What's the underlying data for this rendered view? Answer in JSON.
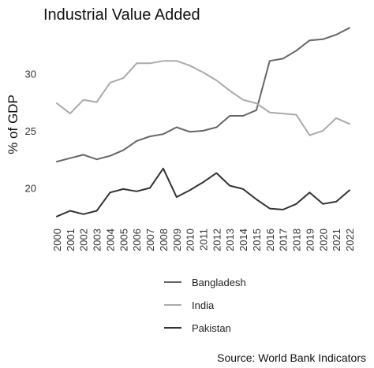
{
  "chart_data": {
    "type": "line",
    "title": "Industrial Value Added",
    "xlabel": "",
    "ylabel": "% of GDP",
    "caption": "Source: World Bank Indicators",
    "x": [
      "2000",
      "2001",
      "2002",
      "2003",
      "2004",
      "2005",
      "2006",
      "2007",
      "2008",
      "2009",
      "2010",
      "2011",
      "2012",
      "2013",
      "2014",
      "2015",
      "2016",
      "2017",
      "2018",
      "2019",
      "2020",
      "2021",
      "2022"
    ],
    "yticks": [
      20,
      25,
      30
    ],
    "ylim": [
      17.0,
      34.5
    ],
    "grid": false,
    "legend_position": "bottom",
    "series": [
      {
        "name": "Bangladesh",
        "color": "#666666",
        "values": [
          22.3,
          22.6,
          22.9,
          22.5,
          22.8,
          23.3,
          24.1,
          24.5,
          24.7,
          25.3,
          24.9,
          25.0,
          25.3,
          26.3,
          26.3,
          26.8,
          31.1,
          31.3,
          32.0,
          32.9,
          33.0,
          33.4,
          34.0
        ]
      },
      {
        "name": "India",
        "color": "#aaaaaa",
        "values": [
          27.4,
          26.5,
          27.7,
          27.5,
          29.2,
          29.6,
          30.9,
          30.9,
          31.1,
          31.1,
          30.7,
          30.1,
          29.4,
          28.5,
          27.7,
          27.4,
          26.6,
          26.5,
          26.4,
          24.6,
          25.0,
          26.1,
          25.6
        ]
      },
      {
        "name": "Pakistan",
        "color": "#333333",
        "values": [
          17.5,
          18.0,
          17.7,
          18.0,
          19.6,
          19.9,
          19.7,
          20.0,
          21.7,
          19.2,
          19.8,
          20.5,
          21.3,
          20.2,
          19.9,
          19.0,
          18.2,
          18.1,
          18.6,
          19.6,
          18.6,
          18.8,
          19.8
        ]
      }
    ]
  }
}
